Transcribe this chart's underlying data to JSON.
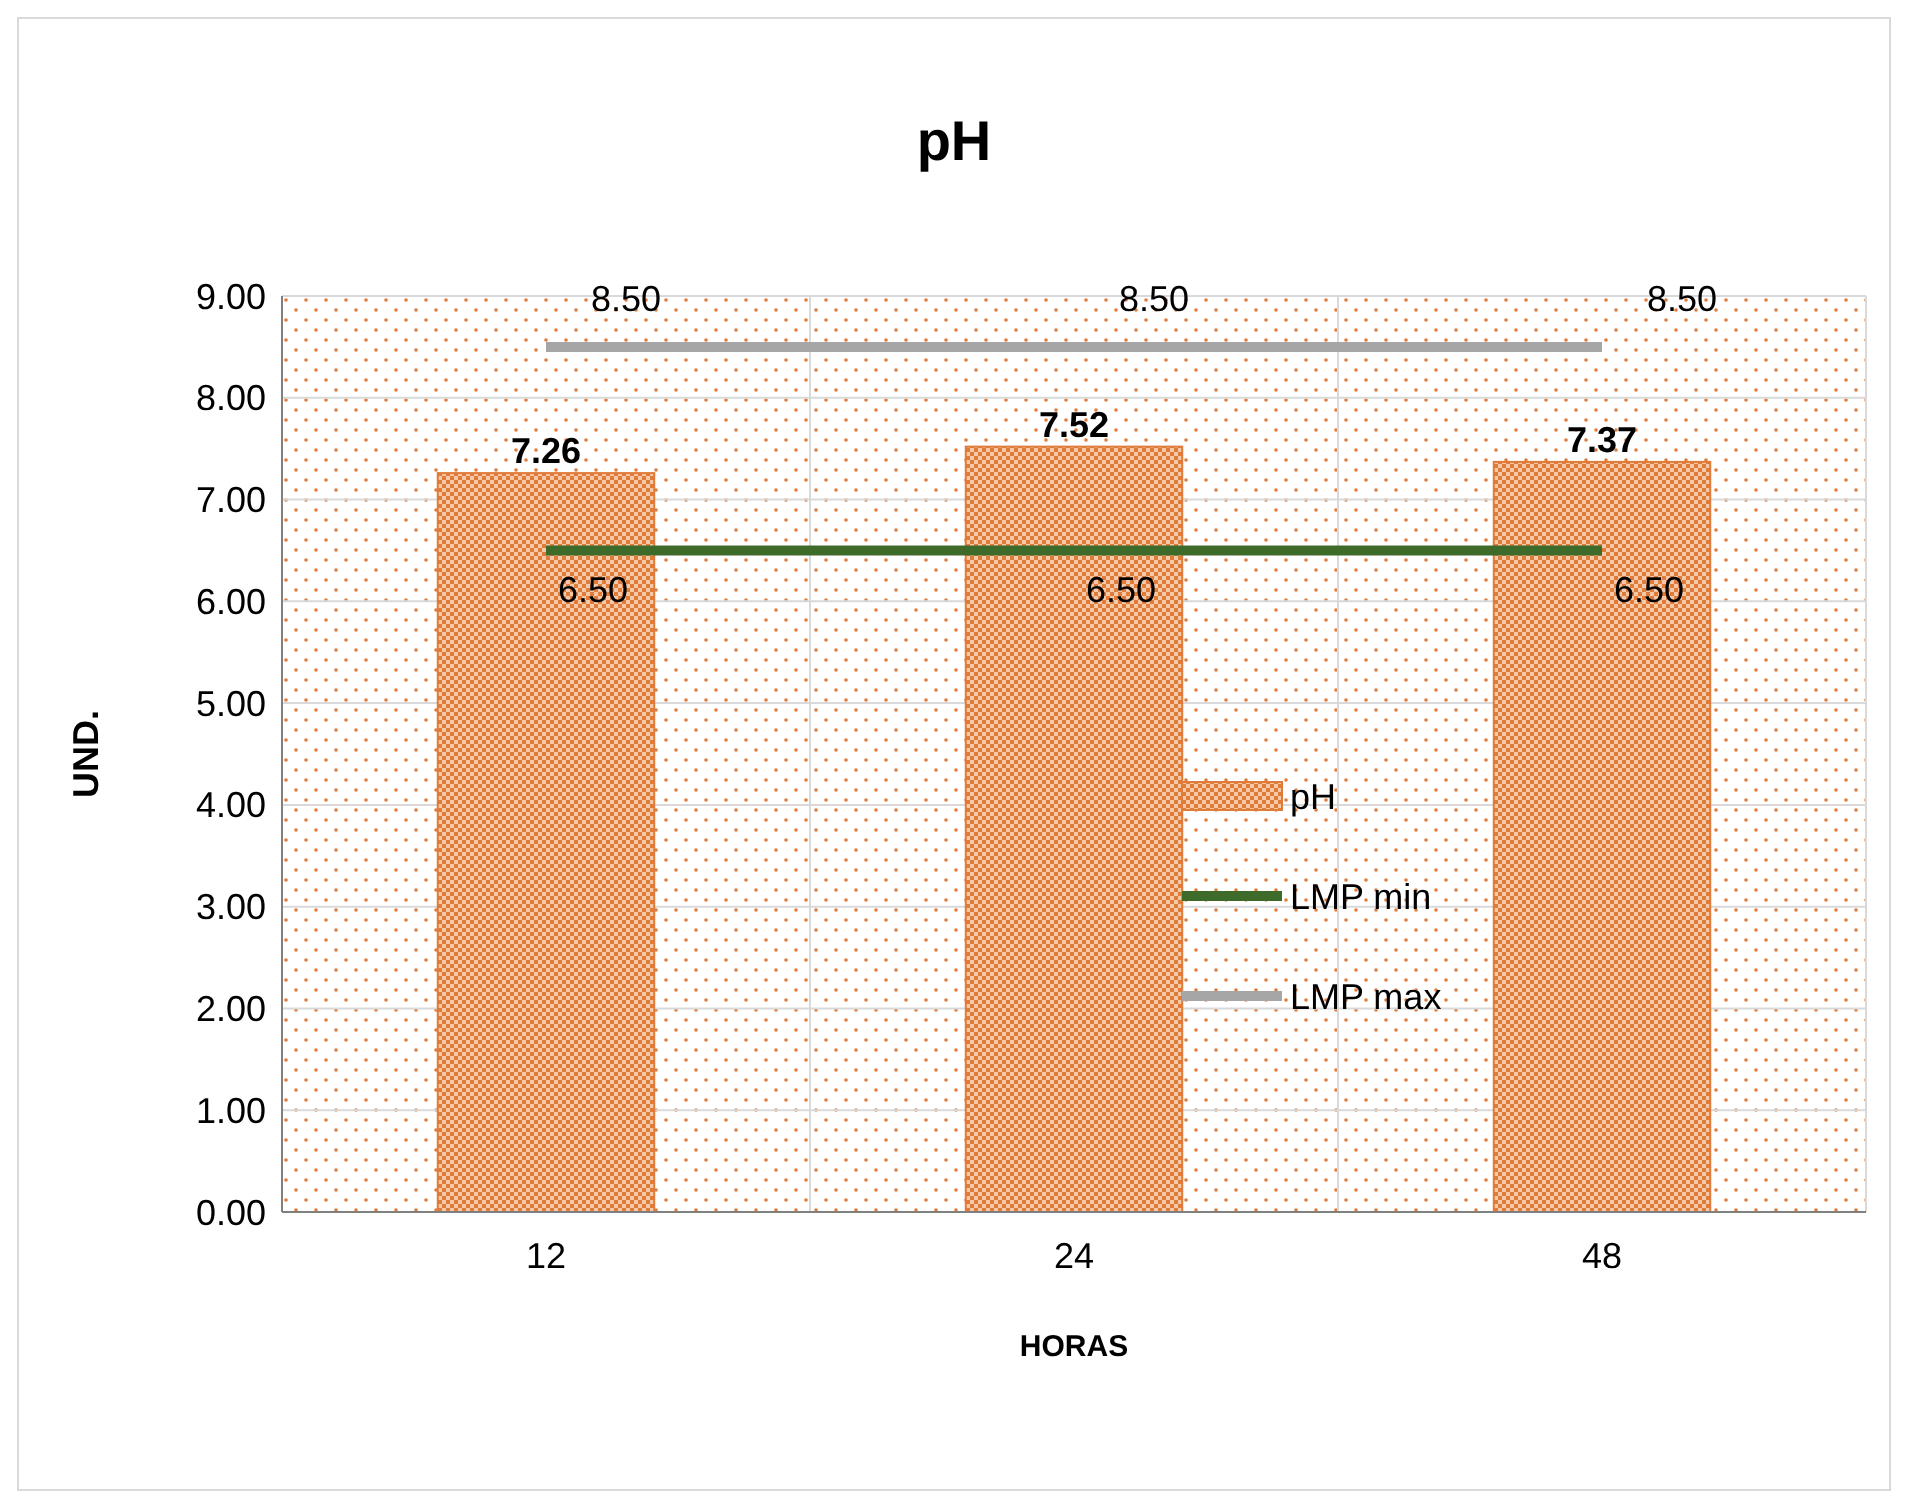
{
  "chart_data": {
    "type": "bar",
    "title": "pH",
    "xlabel": "HORAS",
    "ylabel": "UND.",
    "categories": [
      "12",
      "24",
      "48"
    ],
    "series": [
      {
        "name": "pH",
        "color": "#e07b39",
        "values": [
          7.26,
          7.52,
          7.37
        ],
        "value_labels": [
          "7.26",
          "7.52",
          "7.37"
        ]
      },
      {
        "name": "LMP min",
        "type": "line",
        "color": "#3e6b2a",
        "values": [
          6.5,
          6.5,
          6.5
        ],
        "value_labels": [
          "6.50",
          "6.50",
          "6.50"
        ]
      },
      {
        "name": "LMP max",
        "type": "line",
        "color": "#a6a6a6",
        "values": [
          8.5,
          8.5,
          8.5
        ],
        "value_labels": [
          "8.50",
          "8.50",
          "8.50"
        ]
      }
    ],
    "ylim": [
      0,
      9
    ],
    "yticks": [
      {
        "value": 0,
        "label": "0.00"
      },
      {
        "value": 1,
        "label": "1.00"
      },
      {
        "value": 2,
        "label": "2.00"
      },
      {
        "value": 3,
        "label": "3.00"
      },
      {
        "value": 4,
        "label": "4.00"
      },
      {
        "value": 5,
        "label": "5.00"
      },
      {
        "value": 6,
        "label": "6.00"
      },
      {
        "value": 7,
        "label": "7.00"
      },
      {
        "value": 8,
        "label": "8.00"
      },
      {
        "value": 9,
        "label": "9.00"
      }
    ],
    "grid": true,
    "legend": "center right",
    "marker": "none",
    "line_style": "solid"
  }
}
